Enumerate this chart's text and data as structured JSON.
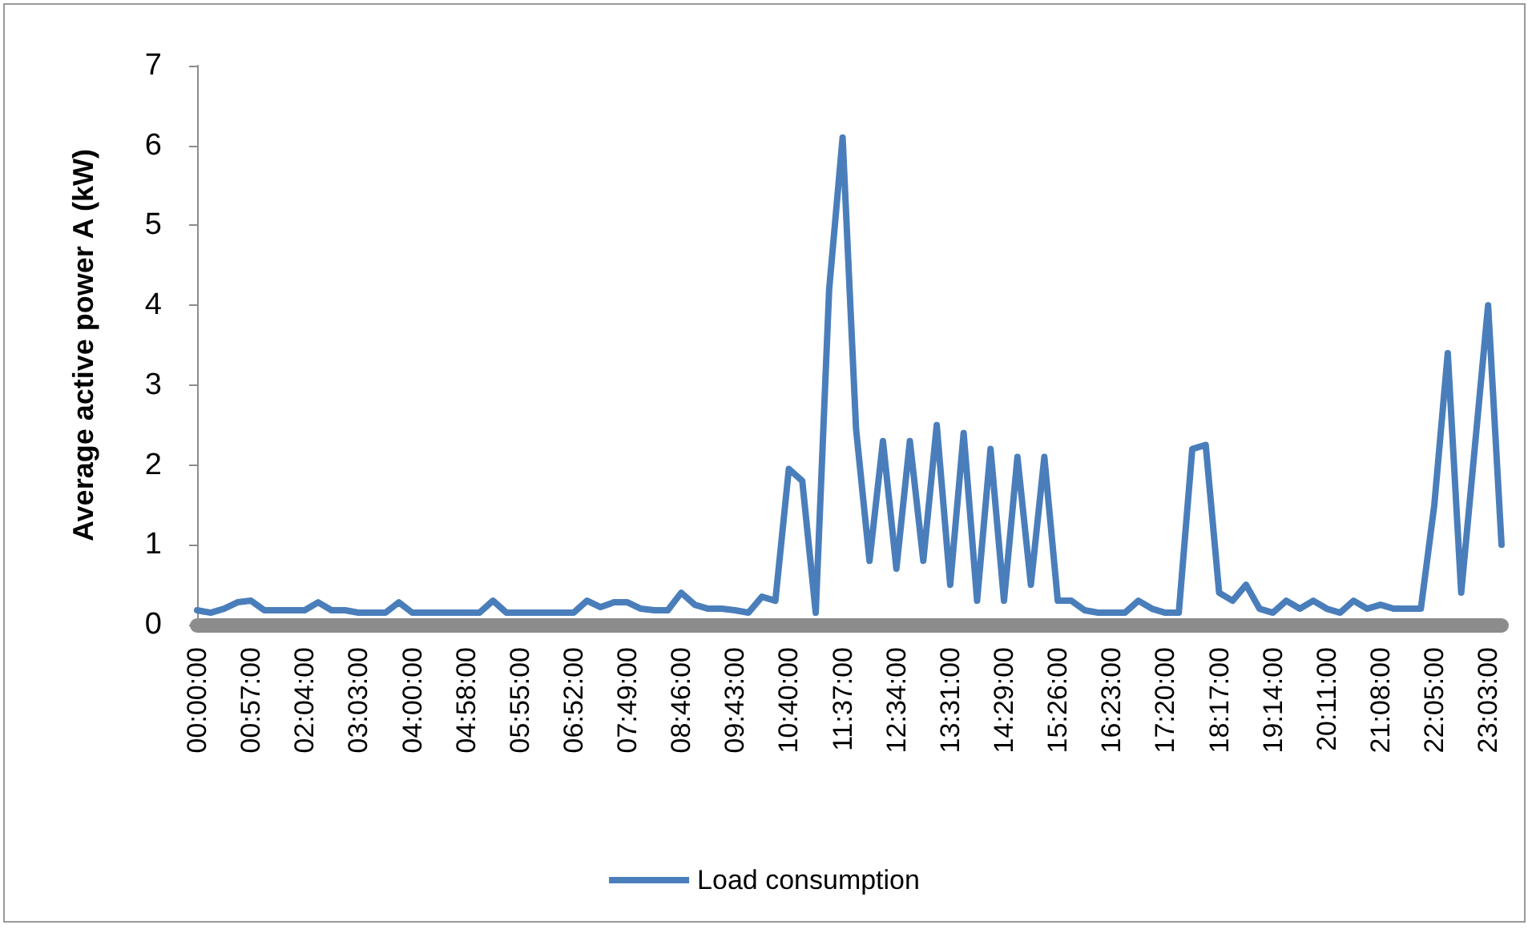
{
  "chart_data": {
    "type": "line",
    "ylabel": "Average active power A (kW)",
    "categories": [
      "00:00:00",
      null,
      null,
      null,
      "00:57:00",
      null,
      null,
      null,
      "02:04:00",
      null,
      null,
      null,
      "03:03:00",
      null,
      null,
      null,
      "04:00:00",
      null,
      null,
      null,
      "04:58:00",
      null,
      null,
      null,
      "05:55:00",
      null,
      null,
      null,
      "06:52:00",
      null,
      null,
      null,
      "07:49:00",
      null,
      null,
      null,
      "08:46:00",
      null,
      null,
      null,
      "09:43:00",
      null,
      null,
      null,
      "10:40:00",
      null,
      null,
      null,
      "11:37:00",
      null,
      null,
      null,
      "12:34:00",
      null,
      null,
      null,
      "13:31:00",
      null,
      null,
      null,
      "14:29:00",
      null,
      null,
      null,
      "15:26:00",
      null,
      null,
      null,
      "16:23:00",
      null,
      null,
      null,
      "17:20:00",
      null,
      null,
      null,
      "18:17:00",
      null,
      null,
      null,
      "19:14:00",
      null,
      null,
      null,
      "20:11:00",
      null,
      null,
      null,
      "21:08:00",
      null,
      null,
      null,
      "22:05:00",
      null,
      null,
      null,
      "23:03:00",
      null
    ],
    "series": [
      {
        "name": "Load consumption",
        "color": "#4a7ebb",
        "values": [
          0.18,
          0.15,
          0.2,
          0.28,
          0.3,
          0.18,
          0.18,
          0.18,
          0.18,
          0.28,
          0.18,
          0.18,
          0.15,
          0.15,
          0.15,
          0.28,
          0.15,
          0.15,
          0.15,
          0.15,
          0.15,
          0.15,
          0.3,
          0.15,
          0.15,
          0.15,
          0.15,
          0.15,
          0.15,
          0.3,
          0.22,
          0.28,
          0.28,
          0.2,
          0.18,
          0.18,
          0.4,
          0.25,
          0.2,
          0.2,
          0.18,
          0.15,
          0.35,
          0.3,
          1.95,
          1.8,
          0.15,
          4.2,
          6.1,
          2.45,
          0.8,
          2.3,
          0.7,
          2.3,
          0.8,
          2.5,
          0.5,
          2.4,
          0.3,
          2.2,
          0.3,
          2.1,
          0.5,
          2.1,
          0.3,
          0.3,
          0.18,
          0.15,
          0.15,
          0.15,
          0.3,
          0.2,
          0.15,
          0.15,
          2.2,
          2.25,
          0.4,
          0.3,
          0.5,
          0.2,
          0.15,
          0.3,
          0.2,
          0.3,
          0.2,
          0.15,
          0.3,
          0.2,
          0.25,
          0.2,
          0.2,
          0.2,
          1.5,
          3.4,
          0.4,
          2.2,
          4.0,
          1.0
        ]
      }
    ],
    "ylim": [
      0,
      7
    ],
    "yticks": [
      0,
      1,
      2,
      3,
      4,
      5,
      6,
      7
    ],
    "grid": false,
    "legend": "bottom",
    "marker": "none",
    "line_style": "solid"
  }
}
